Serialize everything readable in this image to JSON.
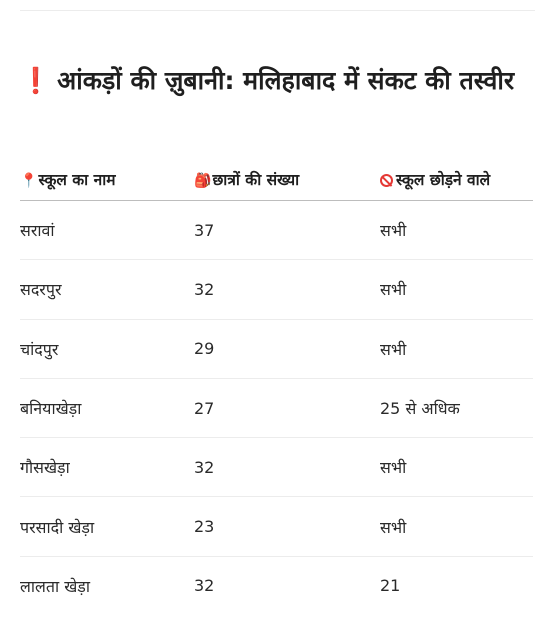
{
  "heading": {
    "icon": "❗",
    "text": "आंकड़ों की ज़ुबानी: मलिहाबाद में संकट की तस्वीर"
  },
  "table": {
    "headers": [
      {
        "icon": "📍",
        "icon_name": "pin-icon",
        "label": "स्कूल का नाम"
      },
      {
        "icon": "🎒",
        "icon_name": "backpack-icon",
        "label": "छात्रों की संख्या"
      },
      {
        "icon": "",
        "icon_name": "no-entry-icon",
        "label": "स्कूल छोड़ने वाले"
      }
    ],
    "rows": [
      {
        "name": "सरावां",
        "students": "37",
        "dropouts": "सभी"
      },
      {
        "name": "सदरपुर",
        "students": "32",
        "dropouts": "सभी"
      },
      {
        "name": "चांदपुर",
        "students": "29",
        "dropouts": "सभी"
      },
      {
        "name": "बनियाखेड़ा",
        "students": "27",
        "dropouts": "25 से अधिक"
      },
      {
        "name": "गौसखेड़ा",
        "students": "32",
        "dropouts": "सभी"
      },
      {
        "name": "परसादी खेड़ा",
        "students": "23",
        "dropouts": "सभी"
      },
      {
        "name": "लालता खेड़ा",
        "students": "32",
        "dropouts": "21"
      }
    ]
  },
  "colors": {
    "accent_red": "#e0202a",
    "text": "#202124",
    "divider": "#ececec"
  }
}
